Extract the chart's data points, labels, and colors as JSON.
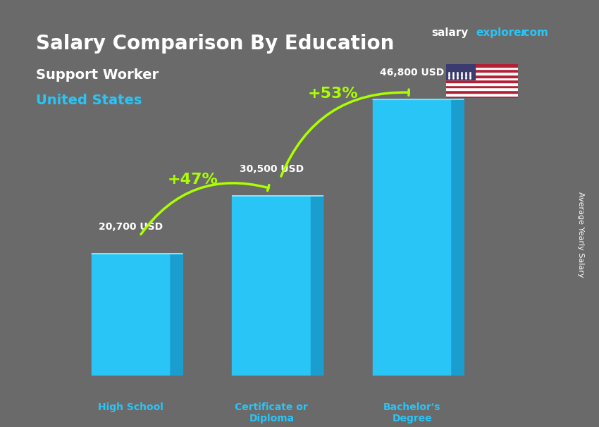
{
  "title_main": "Salary Comparison By Education",
  "subtitle1": "Support Worker",
  "subtitle2": "United States",
  "categories": [
    "High School",
    "Certificate or\nDiploma",
    "Bachelor's\nDegree"
  ],
  "values": [
    20700,
    30500,
    46800
  ],
  "value_labels": [
    "20,700 USD",
    "30,500 USD",
    "46,800 USD"
  ],
  "bar_color_face": "#29c5f6",
  "bar_color_edge": "#1a9ecf",
  "bar_color_right": "#1a9ecf",
  "bar_color_top": "#7de8ff",
  "pct_labels": [
    "+47%",
    "+53%"
  ],
  "pct_color": "#aaff00",
  "ylabel_right": "Average Yearly Salary",
  "brand_salary": "salary",
  "brand_explorer": "explorer",
  "brand_com": ".com",
  "background_color": "#555555",
  "title_color": "#ffffff",
  "subtitle1_color": "#ffffff",
  "subtitle2_color": "#29c5f6",
  "value_label_color": "#ffffff",
  "category_label_color": "#29c5f6"
}
